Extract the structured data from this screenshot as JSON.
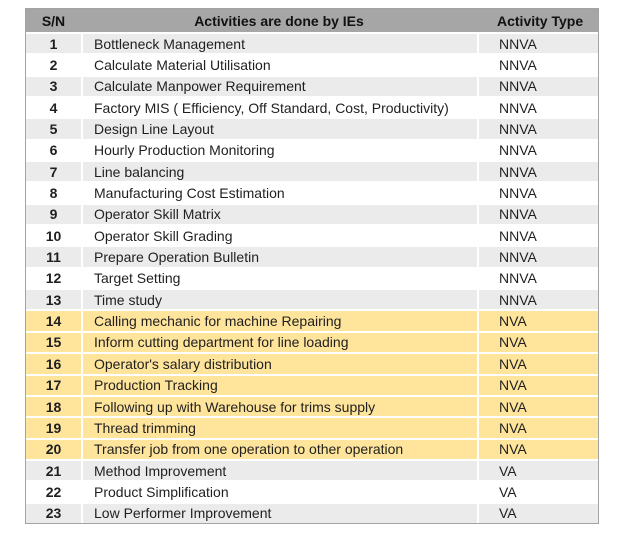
{
  "table": {
    "headers": {
      "sn": "S/N",
      "activity": "Activities are done by IEs",
      "type": "Activity Type"
    },
    "rows": [
      {
        "sn": "1",
        "activity": "Bottleneck Management",
        "type": "NNVA"
      },
      {
        "sn": "2",
        "activity": "Calculate Material Utilisation",
        "type": "NNVA"
      },
      {
        "sn": "3",
        "activity": "Calculate Manpower Requirement",
        "type": "NNVA"
      },
      {
        "sn": "4",
        "activity": "Factory MIS ( Efficiency, Off Standard, Cost, Productivity)",
        "type": "NNVA"
      },
      {
        "sn": "5",
        "activity": "Design Line Layout",
        "type": "NNVA"
      },
      {
        "sn": "6",
        "activity": "Hourly Production Monitoring",
        "type": "NNVA"
      },
      {
        "sn": "7",
        "activity": "Line balancing",
        "type": "NNVA"
      },
      {
        "sn": "8",
        "activity": "Manufacturing Cost Estimation",
        "type": "NNVA"
      },
      {
        "sn": "9",
        "activity": "Operator Skill Matrix",
        "type": "NNVA"
      },
      {
        "sn": "10",
        "activity": "Operator Skill Grading",
        "type": "NNVA"
      },
      {
        "sn": "11",
        "activity": "Prepare Operation Bulletin",
        "type": "NNVA"
      },
      {
        "sn": "12",
        "activity": "Target Setting",
        "type": "NNVA"
      },
      {
        "sn": "13",
        "activity": "Time study",
        "type": "NNVA"
      },
      {
        "sn": "14",
        "activity": "Calling mechanic for machine Repairing",
        "type": "NVA"
      },
      {
        "sn": "15",
        "activity": "Inform cutting department for line loading",
        "type": "NVA"
      },
      {
        "sn": "16",
        "activity": "Operator's salary distribution",
        "type": "NVA"
      },
      {
        "sn": "17",
        "activity": "Production Tracking",
        "type": "NVA"
      },
      {
        "sn": "18",
        "activity": "Following up with Warehouse for trims supply",
        "type": "NVA"
      },
      {
        "sn": "19",
        "activity": "Thread trimming",
        "type": "NVA"
      },
      {
        "sn": "20",
        "activity": "Transfer job from one operation to other operation",
        "type": "NVA"
      },
      {
        "sn": "21",
        "activity": "Method Improvement",
        "type": "VA"
      },
      {
        "sn": "22",
        "activity": "Product Simplification",
        "type": "VA"
      },
      {
        "sn": "23",
        "activity": "Low Performer Improvement",
        "type": "VA"
      }
    ],
    "colors": {
      "header_bg": "#a6a6a6",
      "stripe_bg": "#ebebeb",
      "white_bg": "#ffffff",
      "highlight_bg": "#ffe49c",
      "grid": "#ffffff",
      "text": "#1f1f1f"
    }
  }
}
